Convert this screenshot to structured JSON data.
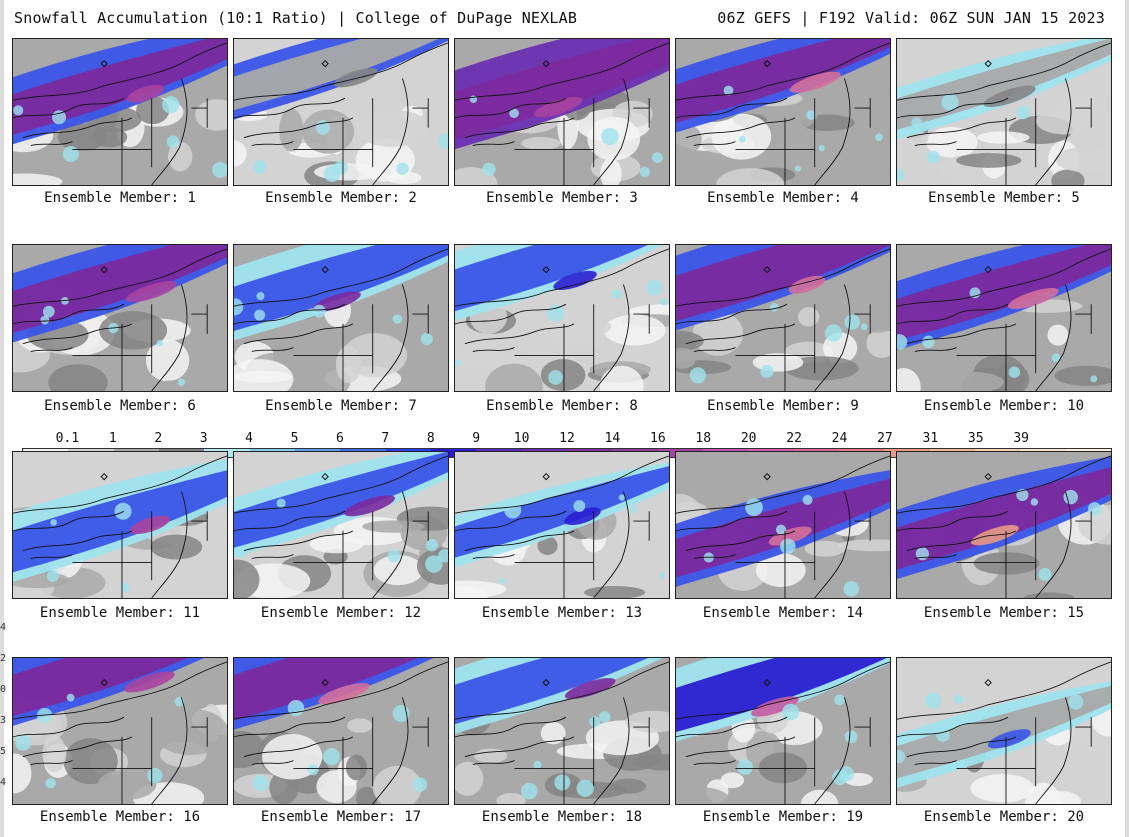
{
  "header": {
    "title": "Snowfall Accumulation (10:1 Ratio) | College of DuPage NEXLAB",
    "run_info": "06Z GEFS | F192 Valid: 06Z SUN JAN 15 2023"
  },
  "legend": {
    "labels": [
      "0.1",
      "1",
      "2",
      "3",
      "4",
      "5",
      "6",
      "7",
      "8",
      "9",
      "10",
      "12",
      "14",
      "16",
      "18",
      "20",
      "22",
      "24",
      "27",
      "31",
      "35",
      "39"
    ],
    "colors": [
      "#f2f2f2",
      "#d0d0d0",
      "#a8a8a8",
      "#7f7f7f",
      "#aeeef2",
      "#83c9f4",
      "#5aa0ec",
      "#3f6fe6",
      "#2a3df0",
      "#2a19d6",
      "#5a2bb8",
      "#6e2fa8",
      "#7d349a",
      "#8e3b9c",
      "#a445a6",
      "#bb55b2",
      "#cc5fa8",
      "#d86a98",
      "#e07b88",
      "#e89a86",
      "#efb79a",
      "#f3cfb5",
      "#f6e3d0",
      "#f9eee2"
    ]
  },
  "panels": [
    {
      "label": "Ensemble Member: 1"
    },
    {
      "label": "Ensemble Member: 2"
    },
    {
      "label": "Ensemble Member: 3"
    },
    {
      "label": "Ensemble Member: 4"
    },
    {
      "label": "Ensemble Member: 5"
    },
    {
      "label": "Ensemble Member: 6"
    },
    {
      "label": "Ensemble Member: 7"
    },
    {
      "label": "Ensemble Member: 8"
    },
    {
      "label": "Ensemble Member: 9"
    },
    {
      "label": "Ensemble Member: 10"
    },
    {
      "label": "Ensemble Member: 11"
    },
    {
      "label": "Ensemble Member: 12"
    },
    {
      "label": "Ensemble Member: 13"
    },
    {
      "label": "Ensemble Member: 14"
    },
    {
      "label": "Ensemble Member: 15"
    },
    {
      "label": "Ensemble Member: 16"
    },
    {
      "label": "Ensemble Member: 17"
    },
    {
      "label": "Ensemble Member: 18"
    },
    {
      "label": "Ensemble Member: 19"
    },
    {
      "label": "Ensemble Member: 20"
    }
  ],
  "side_marks": [
    "4",
    "2",
    "0",
    "3",
    "5",
    "4"
  ]
}
